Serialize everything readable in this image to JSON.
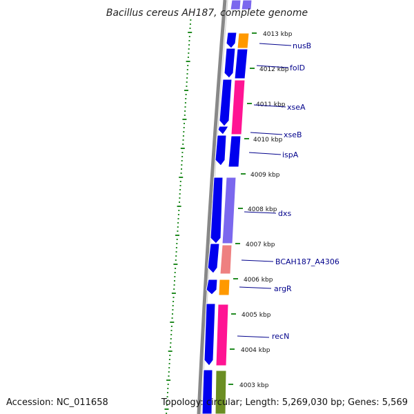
{
  "title": "Bacillus cereus AH187, complete genome",
  "accession": "Accession: NC_011658",
  "summary": "Topology: circular; Length: 5,269,030 bp; Genes: 5,569",
  "colors": {
    "forward_cds": "#0000ee",
    "gc_skew": "#228b22",
    "backbone": "#888888",
    "label_line": "#00008b",
    "orange": "#ff9900",
    "pink": "#ff1493",
    "salmon": "#ee8080",
    "lavender": "#7b68ee",
    "olive": "#6b8e23"
  },
  "ticks": [
    {
      "label": "4013 kbp"
    },
    {
      "label": "4012 kbp"
    },
    {
      "label": "4011 kbp"
    },
    {
      "label": "4010 kbp"
    },
    {
      "label": "4009 kbp"
    },
    {
      "label": "4008 kbp"
    },
    {
      "label": "4007 kbp"
    },
    {
      "label": "4006 kbp"
    },
    {
      "label": "4005 kbp"
    },
    {
      "label": "4004 kbp"
    },
    {
      "label": "4003 kbp"
    }
  ],
  "genes": [
    {
      "name": "nusB",
      "category": "orange"
    },
    {
      "name": "folD",
      "category": "blue"
    },
    {
      "name": "xseA",
      "category": "pink"
    },
    {
      "name": "xseB",
      "category": "blue"
    },
    {
      "name": "ispA",
      "category": "blue"
    },
    {
      "name": "dxs",
      "category": "lavender"
    },
    {
      "name": "BCAH187_A4306",
      "category": "salmon"
    },
    {
      "name": "argR",
      "category": "orange"
    },
    {
      "name": "recN",
      "category": "pink"
    }
  ]
}
